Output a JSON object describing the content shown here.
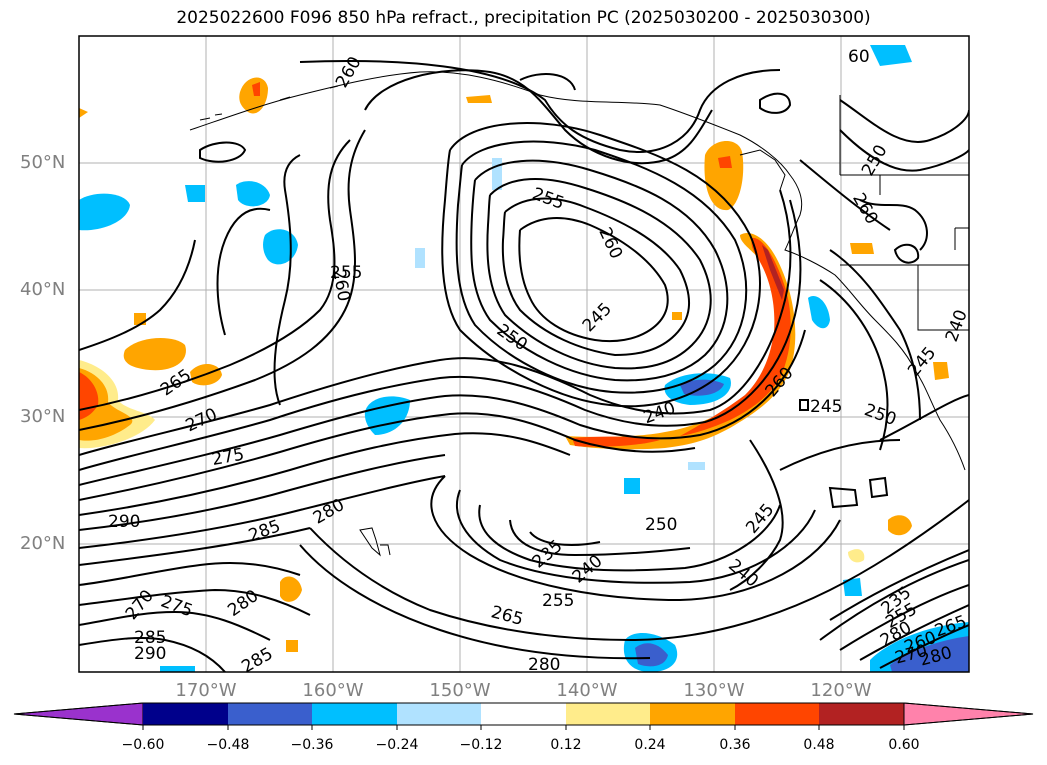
{
  "title": "2025022600 F096 850 hPa refract., precipitation PC (2025030200 - 2025030300)",
  "lat_labels": [
    "50°N",
    "40°N",
    "30°N",
    "20°N"
  ],
  "lon_labels": [
    "170°W",
    "160°W",
    "150°W",
    "140°W",
    "130°W",
    "120°W"
  ],
  "colorbar": {
    "ticks": [
      "−0.60",
      "−0.48",
      "−0.36",
      "−0.24",
      "−0.12",
      "0.12",
      "0.24",
      "0.36",
      "0.48",
      "0.60"
    ],
    "colors": [
      "#9a32cd",
      "#00008b",
      "#3a5fcd",
      "#00bfff",
      "#b0e2ff",
      "#ffffff",
      "#ffec8b",
      "#ffa500",
      "#ff4500",
      "#b22222",
      "#ff82ab"
    ]
  },
  "contour_labels": [
    "260",
    "255",
    "260",
    "260",
    "250",
    "60",
    "255",
    "260",
    "245",
    "250",
    "265",
    "240",
    "270",
    "260",
    "245",
    "245",
    "250",
    "275",
    "280",
    "290",
    "285",
    "245",
    "250",
    "235",
    "240",
    "240",
    "255",
    "270",
    "275",
    "280",
    "285",
    "265",
    "280",
    "235",
    "290",
    "285",
    "280",
    "255",
    "260",
    "270",
    "280",
    "265",
    "240"
  ],
  "shading": {
    "positive_color": "#ffa500",
    "strong_positive_color": "#ff4500",
    "negative_color": "#00bfff"
  }
}
